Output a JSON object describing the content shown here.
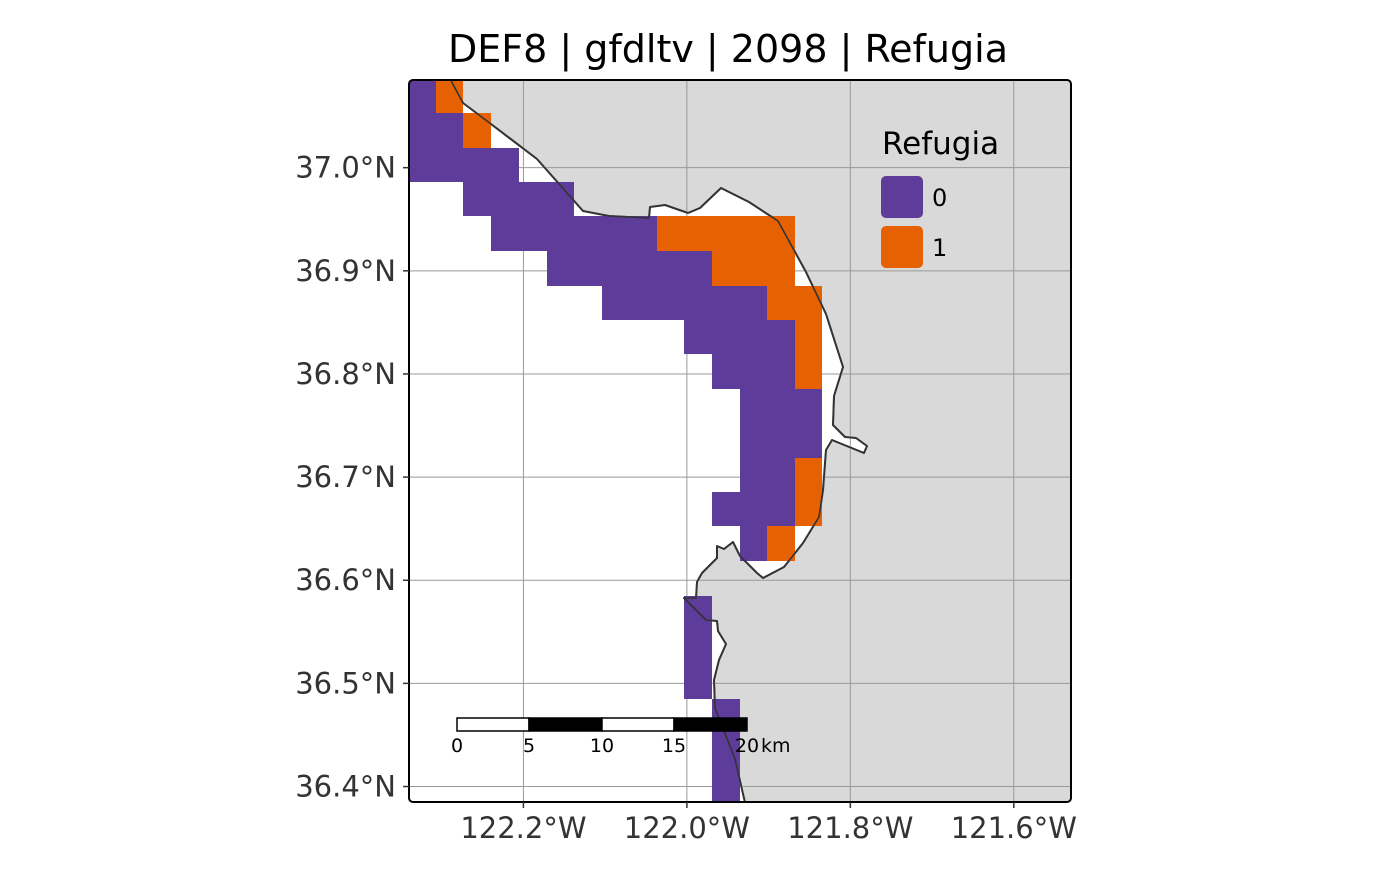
{
  "title": "DEF8 | gfdltv | 2098 | Refugia",
  "map": {
    "lon_range": [
      -122.34,
      -121.53
    ],
    "lat_range": [
      36.385,
      37.085
    ],
    "land_color": "#d9d9d9",
    "ocean_color": "#ffffff",
    "coastline_color": "#333333",
    "grid_color": "#999999",
    "x_ticks": [
      {
        "value": -122.2,
        "label": "122.2°W"
      },
      {
        "value": -122.0,
        "label": "122.0°W"
      },
      {
        "value": -121.8,
        "label": "121.8°W"
      },
      {
        "value": -121.6,
        "label": "121.6°W"
      }
    ],
    "y_ticks": [
      {
        "value": 37.0,
        "label": "37.0°N"
      },
      {
        "value": 36.9,
        "label": "36.9°N"
      },
      {
        "value": 36.8,
        "label": "36.8°N"
      },
      {
        "value": 36.7,
        "label": "36.7°N"
      },
      {
        "value": 36.6,
        "label": "36.6°N"
      },
      {
        "value": 36.5,
        "label": "36.5°N"
      },
      {
        "value": 36.4,
        "label": "36.4°N"
      }
    ]
  },
  "legend": {
    "title": "Refugia",
    "placement": "top-right",
    "items": [
      {
        "label": "0",
        "color": "#5e3c99"
      },
      {
        "label": "1",
        "color": "#e66101"
      }
    ]
  },
  "scale_bar": {
    "ticks": [
      "0",
      "5",
      "10",
      "15",
      "20"
    ],
    "unit": "km"
  }
}
